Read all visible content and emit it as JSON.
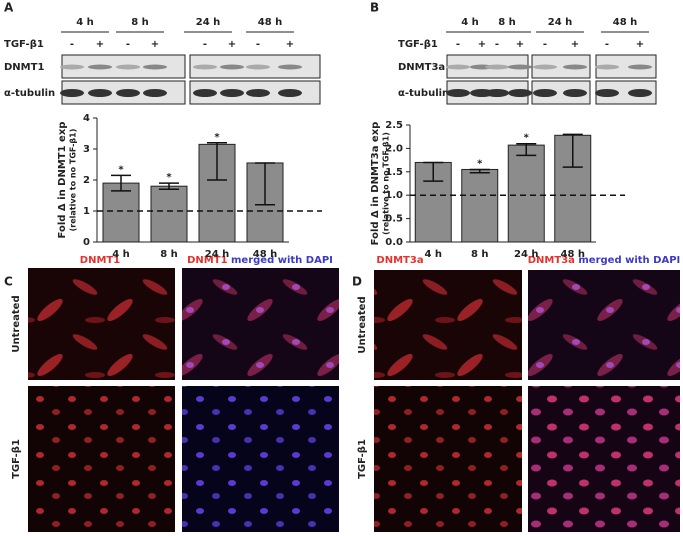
{
  "panel_a": {
    "label": "A",
    "times": [
      "4 h",
      "8 h",
      "24 h",
      "48 h"
    ],
    "treatment": "TGF-β1",
    "signs": [
      "-",
      "+",
      "-",
      "+",
      "-",
      "+",
      "-",
      "+"
    ],
    "blots": [
      "DNMT1",
      "α-tubulin"
    ]
  },
  "panel_b": {
    "label": "B",
    "times": [
      "4 h",
      "8 h",
      "24 h",
      "48 h"
    ],
    "treatment": "TGF-β1",
    "signs": [
      "-",
      "+",
      "-",
      "+",
      "-",
      "+",
      "-",
      "+"
    ],
    "blots": [
      "DNMT3a",
      "α-tubulin"
    ]
  },
  "chart_data": [
    {
      "type": "bar",
      "y_label": "Fold Δ in DNMT1 exp",
      "y_sublabel": "(relative to no TGF-β1)",
      "categories": [
        "4 h",
        "8 h",
        "24 h",
        "48 h"
      ],
      "values": [
        1.9,
        1.8,
        3.15,
        2.55
      ],
      "lower": [
        1.65,
        1.7,
        2.0,
        1.2
      ],
      "upper": [
        2.15,
        1.9,
        3.2,
        2.55
      ],
      "annotations": [
        "*",
        "*",
        "*",
        null
      ],
      "reference_line": 1,
      "color": "#8c8c8c",
      "ylim": [
        0,
        4
      ],
      "yticks": [
        0,
        1,
        2,
        3,
        4
      ]
    },
    {
      "type": "bar",
      "y_label": "Fold Δ in DNMT3a exp",
      "y_sublabel": "(relative to no TGF-β1)",
      "categories": [
        "4 h",
        "8 h",
        "24 h",
        "48 h"
      ],
      "values": [
        1.7,
        1.55,
        2.07,
        2.28
      ],
      "lower": [
        1.3,
        1.48,
        1.85,
        1.6
      ],
      "upper": [
        1.7,
        1.55,
        2.1,
        2.3
      ],
      "annotations": [
        null,
        "*",
        "*",
        null
      ],
      "reference_line": 1,
      "color": "#8c8c8c",
      "ylim": [
        0,
        2.5
      ],
      "yticks": [
        {
          "value": 0,
          "label": "0.0"
        },
        0.5,
        {
          "value": 1,
          "label": "1.0"
        },
        1.5,
        {
          "value": 2,
          "label": "2.0"
        },
        2.5
      ]
    }
  ],
  "panel_c": {
    "label": "C",
    "stain": "DNMT1",
    "merge": "merged with DAPI",
    "rows": [
      "Untreated",
      "TGF-β1"
    ]
  },
  "panel_d": {
    "label": "D",
    "stain": "DNMT3a",
    "merge": "merged with DAPI",
    "rows": [
      "Untreated",
      "TGF-β1"
    ]
  }
}
